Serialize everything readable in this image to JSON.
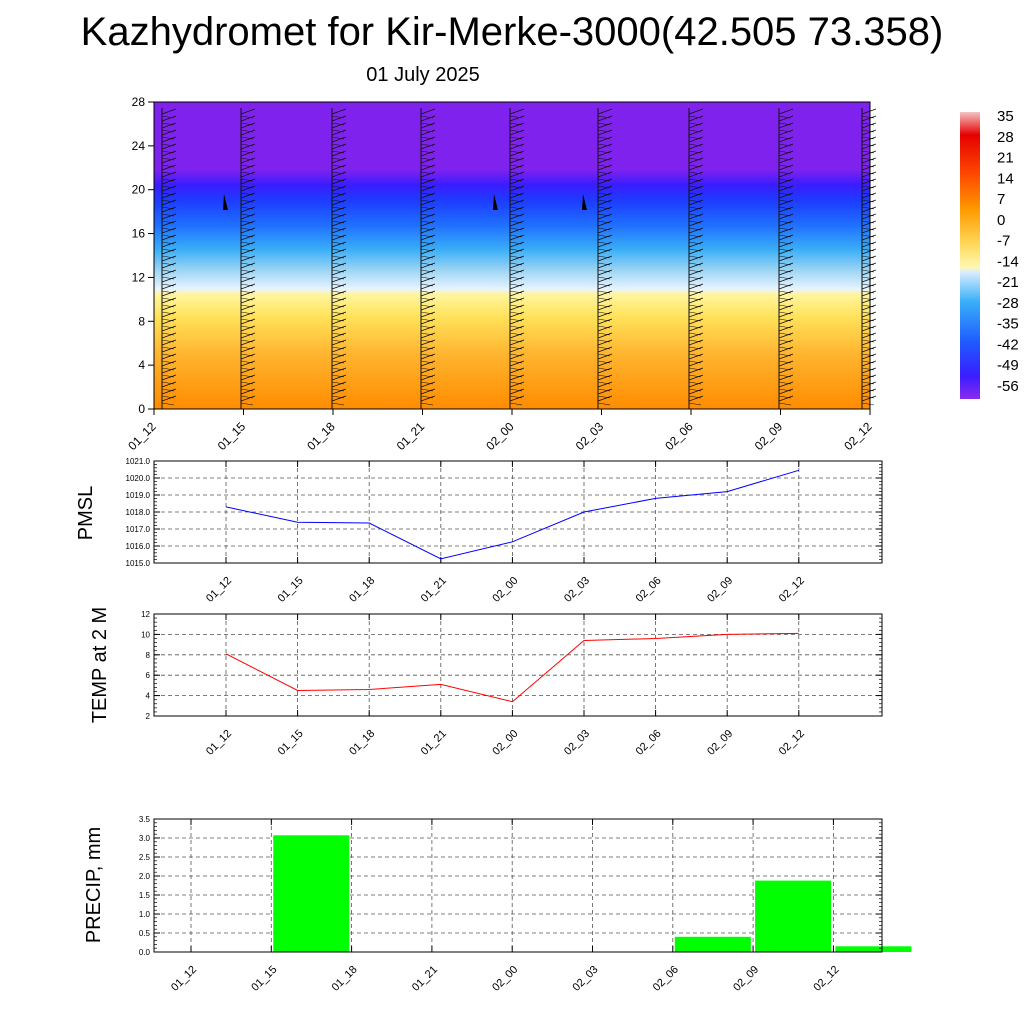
{
  "title": "Kazhydromet for Kir-Merke-3000(42.505 73.358)",
  "subtitle": "01 July 2025",
  "colorbar": {
    "labels": [
      "35",
      "28",
      "21",
      "14",
      "7",
      "0",
      "-7",
      "-14",
      "-21",
      "-28",
      "-35",
      "-42",
      "-49",
      "-56"
    ]
  },
  "chart_data": [
    {
      "type": "heatmap",
      "name": "cross-section",
      "x_ticks": [
        "01_12",
        "01_15",
        "01_18",
        "01_21",
        "02_00",
        "02_03",
        "02_06",
        "02_09",
        "02_12"
      ],
      "y_ticks": [
        "0",
        "4",
        "8",
        "12",
        "16",
        "20",
        "24",
        "28"
      ],
      "ylim": [
        0,
        28
      ],
      "color_min": -56,
      "color_max": 35,
      "colors": {
        "cold": "#7f22ee",
        "mid_blue": "#1f6fff",
        "pale": "#cfe8ff",
        "yellow": "#ffef7a",
        "orange": "#ff8c00"
      },
      "wind_barbs": true
    },
    {
      "type": "line",
      "ylabel": "PMSL",
      "x": [
        "01_12",
        "01_15",
        "01_18",
        "01_21",
        "02_00",
        "02_03",
        "02_06",
        "02_09",
        "02_12"
      ],
      "y_ticks": [
        "1015.0",
        "1016.0",
        "1017.0",
        "1018.0",
        "1019.0",
        "1020.0",
        "1021.0"
      ],
      "ylim": [
        1015,
        1021
      ],
      "series": [
        {
          "values": [
            1018.3,
            1017.4,
            1017.35,
            1015.25,
            1016.25,
            1018.0,
            1018.8,
            1019.2,
            1020.45
          ],
          "color": "#0000ff"
        }
      ],
      "grid": true
    },
    {
      "type": "line",
      "ylabel": "TEMP at 2 M",
      "x": [
        "01_12",
        "01_15",
        "01_18",
        "01_21",
        "02_00",
        "02_03",
        "02_06",
        "02_09",
        "02_12"
      ],
      "y_ticks": [
        "2",
        "4",
        "6",
        "8",
        "10",
        "12"
      ],
      "ylim": [
        2,
        12
      ],
      "series": [
        {
          "values": [
            8.1,
            4.5,
            4.6,
            5.1,
            3.4,
            9.4,
            9.6,
            10.0,
            10.1
          ],
          "color": "#ff0000"
        }
      ],
      "grid": true
    },
    {
      "type": "bar",
      "ylabel": "PRECIP, mm",
      "categories": [
        "01_12",
        "01_15",
        "01_18",
        "01_21",
        "02_00",
        "02_03",
        "02_06",
        "02_09",
        "02_12"
      ],
      "y_ticks": [
        "0.0",
        "0.5",
        "1.0",
        "1.5",
        "2.0",
        "2.5",
        "3.0",
        "3.5"
      ],
      "ylim": [
        0,
        3.5
      ],
      "values": [
        0,
        3.07,
        0,
        0,
        0,
        0,
        0.4,
        1.88,
        0.15
      ],
      "color": "#00ff00",
      "grid": true
    }
  ]
}
